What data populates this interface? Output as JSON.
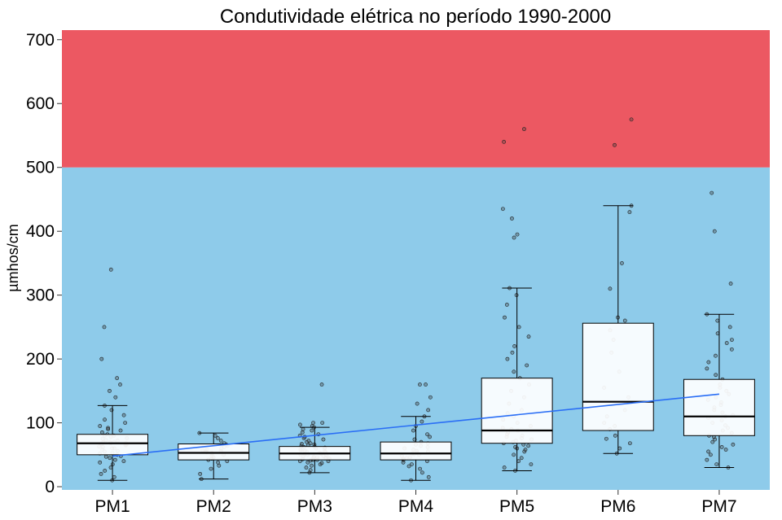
{
  "chart_data": {
    "type": "box",
    "title": "Condutividade elétrica no período 1990-2000",
    "xlabel": "",
    "ylabel": "µmhos/cm",
    "ylim": [
      -5,
      715
    ],
    "yticks": [
      0,
      100,
      200,
      300,
      400,
      500,
      600,
      700
    ],
    "grid": false,
    "background_bands": [
      {
        "from": -5,
        "to": 500,
        "color": "#8ecbea"
      },
      {
        "from": 500,
        "to": 715,
        "color": "#ec5862"
      }
    ],
    "categories": [
      "PM1",
      "PM2",
      "PM3",
      "PM4",
      "PM5",
      "PM6",
      "PM7"
    ],
    "boxes": [
      {
        "category": "PM1",
        "whisker_low": 10,
        "q1": 50,
        "median": 68,
        "q3": 82,
        "whisker_high": 127,
        "points": [
          10,
          15,
          20,
          25,
          30,
          35,
          38,
          40,
          42,
          45,
          47,
          48,
          50,
          52,
          53,
          55,
          56,
          58,
          60,
          60,
          62,
          63,
          65,
          66,
          67,
          68,
          68,
          69,
          70,
          70,
          72,
          73,
          75,
          76,
          78,
          80,
          80,
          82,
          85,
          88,
          90,
          92,
          95,
          100,
          105,
          112,
          120,
          127,
          140,
          150,
          160,
          170,
          200,
          250,
          340
        ]
      },
      {
        "category": "PM2",
        "whisker_low": 12,
        "q1": 42,
        "median": 53,
        "q3": 67,
        "whisker_high": 84,
        "points": [
          12,
          20,
          28,
          33,
          38,
          40,
          42,
          44,
          46,
          48,
          50,
          52,
          53,
          54,
          55,
          56,
          57,
          58,
          60,
          62,
          64,
          66,
          68,
          72,
          76,
          80,
          84
        ]
      },
      {
        "category": "PM3",
        "whisker_low": 22,
        "q1": 42,
        "median": 52,
        "q3": 63,
        "whisker_high": 93,
        "points": [
          22,
          26,
          30,
          33,
          35,
          37,
          38,
          40,
          40,
          41,
          42,
          42,
          43,
          44,
          45,
          45,
          46,
          47,
          48,
          48,
          49,
          50,
          50,
          51,
          52,
          52,
          53,
          54,
          55,
          55,
          56,
          57,
          58,
          58,
          60,
          60,
          61,
          62,
          63,
          64,
          65,
          66,
          67,
          68,
          70,
          72,
          74,
          76,
          78,
          80,
          82,
          85,
          88,
          90,
          93,
          95,
          97,
          100,
          100,
          160
        ]
      },
      {
        "category": "PM4",
        "whisker_low": 10,
        "q1": 42,
        "median": 52,
        "q3": 70,
        "whisker_high": 110,
        "points": [
          10,
          15,
          22,
          28,
          32,
          35,
          38,
          40,
          42,
          44,
          45,
          46,
          48,
          50,
          51,
          52,
          53,
          55,
          56,
          58,
          60,
          62,
          64,
          66,
          68,
          70,
          74,
          78,
          82,
          88,
          95,
          102,
          110,
          120,
          130,
          140,
          160,
          160
        ]
      },
      {
        "category": "PM5",
        "whisker_low": 25,
        "q1": 68,
        "median": 88,
        "q3": 170,
        "whisker_high": 311,
        "points": [
          25,
          30,
          35,
          40,
          45,
          50,
          55,
          58,
          60,
          62,
          64,
          66,
          68,
          70,
          72,
          74,
          76,
          78,
          80,
          82,
          85,
          88,
          90,
          92,
          95,
          100,
          105,
          110,
          115,
          120,
          130,
          140,
          150,
          160,
          170,
          180,
          190,
          200,
          210,
          220,
          235,
          250,
          265,
          285,
          300,
          311,
          390,
          395,
          420,
          435,
          540,
          560
        ]
      },
      {
        "category": "PM6",
        "whisker_low": 52,
        "q1": 88,
        "median": 133,
        "q3": 256,
        "whisker_high": 440,
        "points": [
          52,
          60,
          68,
          75,
          80,
          90,
          95,
          100,
          110,
          120,
          140,
          155,
          180,
          210,
          230,
          245,
          260,
          265,
          310,
          350,
          430,
          440,
          535,
          575
        ]
      },
      {
        "category": "PM7",
        "whisker_low": 30,
        "q1": 80,
        "median": 110,
        "q3": 168,
        "whisker_high": 270,
        "points": [
          30,
          35,
          42,
          50,
          55,
          58,
          62,
          66,
          70,
          74,
          78,
          80,
          84,
          88,
          92,
          96,
          100,
          104,
          108,
          110,
          112,
          116,
          120,
          124,
          128,
          132,
          136,
          140,
          145,
          150,
          155,
          160,
          168,
          175,
          185,
          195,
          205,
          215,
          225,
          230,
          240,
          250,
          260,
          270,
          318,
          400,
          460
        ]
      }
    ],
    "trend_line": {
      "color": "#2a6ef5",
      "from": {
        "category": "PM1",
        "y": 48
      },
      "to": {
        "category": "PM7",
        "y": 145
      }
    }
  }
}
